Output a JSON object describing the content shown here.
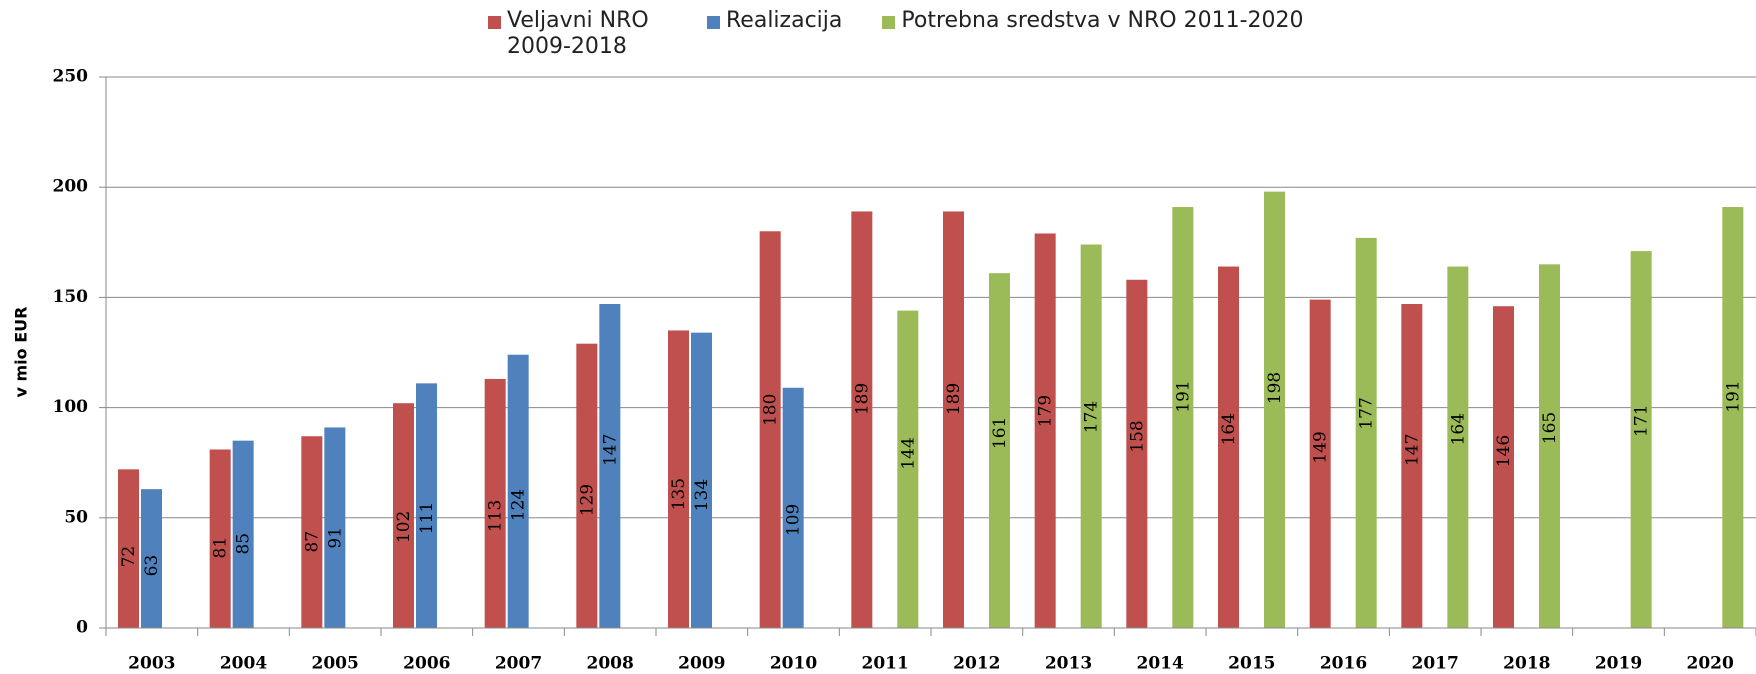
{
  "chart_data": {
    "type": "bar",
    "y_label": "v mio EUR",
    "categories": [
      "2003",
      "2004",
      "2005",
      "2006",
      "2007",
      "2008",
      "2009",
      "2010",
      "2011",
      "2012",
      "2013",
      "2014",
      "2015",
      "2016",
      "2017",
      "2018",
      "2019",
      "2020"
    ],
    "series": [
      {
        "name": "Veljavni NRO 2009-2018",
        "color": "#c0504d",
        "values": [
          72,
          81,
          87,
          102,
          113,
          129,
          135,
          180,
          189,
          189,
          179,
          158,
          164,
          149,
          147,
          146,
          null,
          null
        ]
      },
      {
        "name": "Realizacija",
        "color": "#4f81bd",
        "values": [
          63,
          85,
          91,
          111,
          124,
          147,
          134,
          109,
          null,
          null,
          null,
          null,
          null,
          null,
          null,
          null,
          null,
          null
        ]
      },
      {
        "name": "Potrebna sredstva v NRO 2011-2020",
        "color": "#9bbb59",
        "values": [
          null,
          null,
          null,
          null,
          null,
          null,
          null,
          null,
          144,
          161,
          174,
          191,
          198,
          177,
          164,
          165,
          171,
          191
        ]
      }
    ],
    "ylim": [
      0,
      250
    ],
    "yticks": [
      0,
      50,
      100,
      150,
      200,
      250
    ],
    "grid": true,
    "legend": "top"
  }
}
